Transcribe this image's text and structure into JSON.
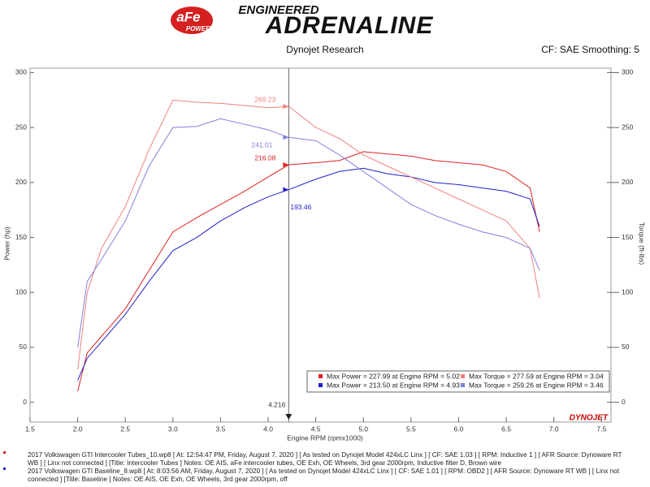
{
  "header": {
    "brand_top": "ENGINEERED",
    "brand_main": "ADRENALINE",
    "logo": "aFe",
    "logo_sub": "POWER",
    "left_caption": "Dynojet Research",
    "right_caption": "CF: SAE Smoothing: 5"
  },
  "chart_data": {
    "type": "line",
    "x_label": "Engine RPM (rpmx1000)",
    "y_label": "Power (hp)",
    "y2_label": "Torque (ft-lbs)",
    "watermark": "DYNOJET",
    "x": [
      2.0,
      2.1,
      2.25,
      2.5,
      2.75,
      3.0,
      3.25,
      3.5,
      3.75,
      4.0,
      4.216,
      4.5,
      4.75,
      5.0,
      5.25,
      5.5,
      5.75,
      6.0,
      6.25,
      6.5,
      6.75,
      6.85
    ],
    "series": [
      {
        "name": "Max Power = 227.99 at Engine RPM = 5.02",
        "color": "#e02020",
        "values": [
          10,
          45,
          60,
          85,
          120,
          155,
          168,
          180,
          192,
          205,
          216.08,
          218,
          220,
          228,
          226,
          224,
          220,
          218,
          216,
          210,
          195,
          155
        ]
      },
      {
        "name": "Max Power = 213.50 at Engine RPM = 4.93",
        "color": "#2020c8",
        "values": [
          20,
          40,
          55,
          80,
          110,
          138,
          150,
          165,
          177,
          187,
          193.46,
          203,
          210,
          213,
          208,
          205,
          200,
          198,
          195,
          192,
          185,
          160
        ]
      },
      {
        "name": "Max Torque = 277.59 at Engine RPM = 3.04",
        "color": "#ef8080",
        "axis": "y2",
        "values": [
          30,
          100,
          140,
          178,
          230,
          275,
          273,
          272,
          270,
          268,
          269.23,
          250,
          240,
          225,
          215,
          205,
          195,
          185,
          175,
          165,
          140,
          95
        ]
      },
      {
        "name": "Max Torque = 259.26 at Engine RPM = 3.46",
        "color": "#8080e0",
        "axis": "y2",
        "values": [
          50,
          110,
          130,
          165,
          215,
          250,
          251,
          258,
          253,
          248,
          241.01,
          238,
          225,
          210,
          195,
          180,
          170,
          162,
          155,
          150,
          140,
          120
        ]
      }
    ],
    "cursor_x": 4.216,
    "cursor_values": [
      216.08,
      193.46,
      269.23,
      241.01
    ],
    "xlim": [
      1.5,
      7.6
    ],
    "xticks": [
      1.5,
      {
        "value": 2,
        "label": "2.0"
      },
      2.5,
      {
        "value": 3,
        "label": "3.0"
      },
      3.5,
      {
        "value": 4,
        "label": "4.0"
      },
      4.5,
      {
        "value": 5,
        "label": "5.0"
      },
      5.5,
      {
        "value": 6,
        "label": "6.0"
      },
      6.5,
      {
        "value": 7,
        "label": "7.0"
      },
      7.5
    ],
    "ylim": [
      -18,
      304
    ],
    "yticks": [
      0,
      50,
      100,
      150,
      200,
      250,
      300
    ],
    "y2lim": [
      -18,
      304
    ],
    "y2ticks": [
      0,
      50,
      100,
      150,
      200,
      250,
      300
    ]
  },
  "footer": [
    "2017 Volkswagen GTI Intercooler Tubes_10.wp8 [ At: 12:54:47 PM, Friday, August 7, 2020 ] [ As tested on Dynojet Model 424xLC Linx ] [ CF: SAE 1.03 ] [ RPM: Inductive 1 ] [ AFR Source: Dynoware RT WB ] [ Linx not connected ] [Title: Intercooler Tubes ]  Notes: OE AIS, aFe intercooler tubes, OE Exh, OE Wheels, 3rd gear 2000rpm, Inductive filter D, Brown wire",
    "2017 Volkswagen GTI Baseline_8.wp8 [ At: 8:03:56 AM, Friday, August 7, 2020 ] [ As tested on Dynojet Model 424xLC Linx ] [ CF: SAE 1.01 ] [ RPM: OBD2 ] [ AFR Source: Dynoware RT WB ] [ Linx not connected ] [Title: Baseline ]  Notes: OE AIS, OE Exh, OE Wheels, 3rd gear 2000rpm, off"
  ]
}
